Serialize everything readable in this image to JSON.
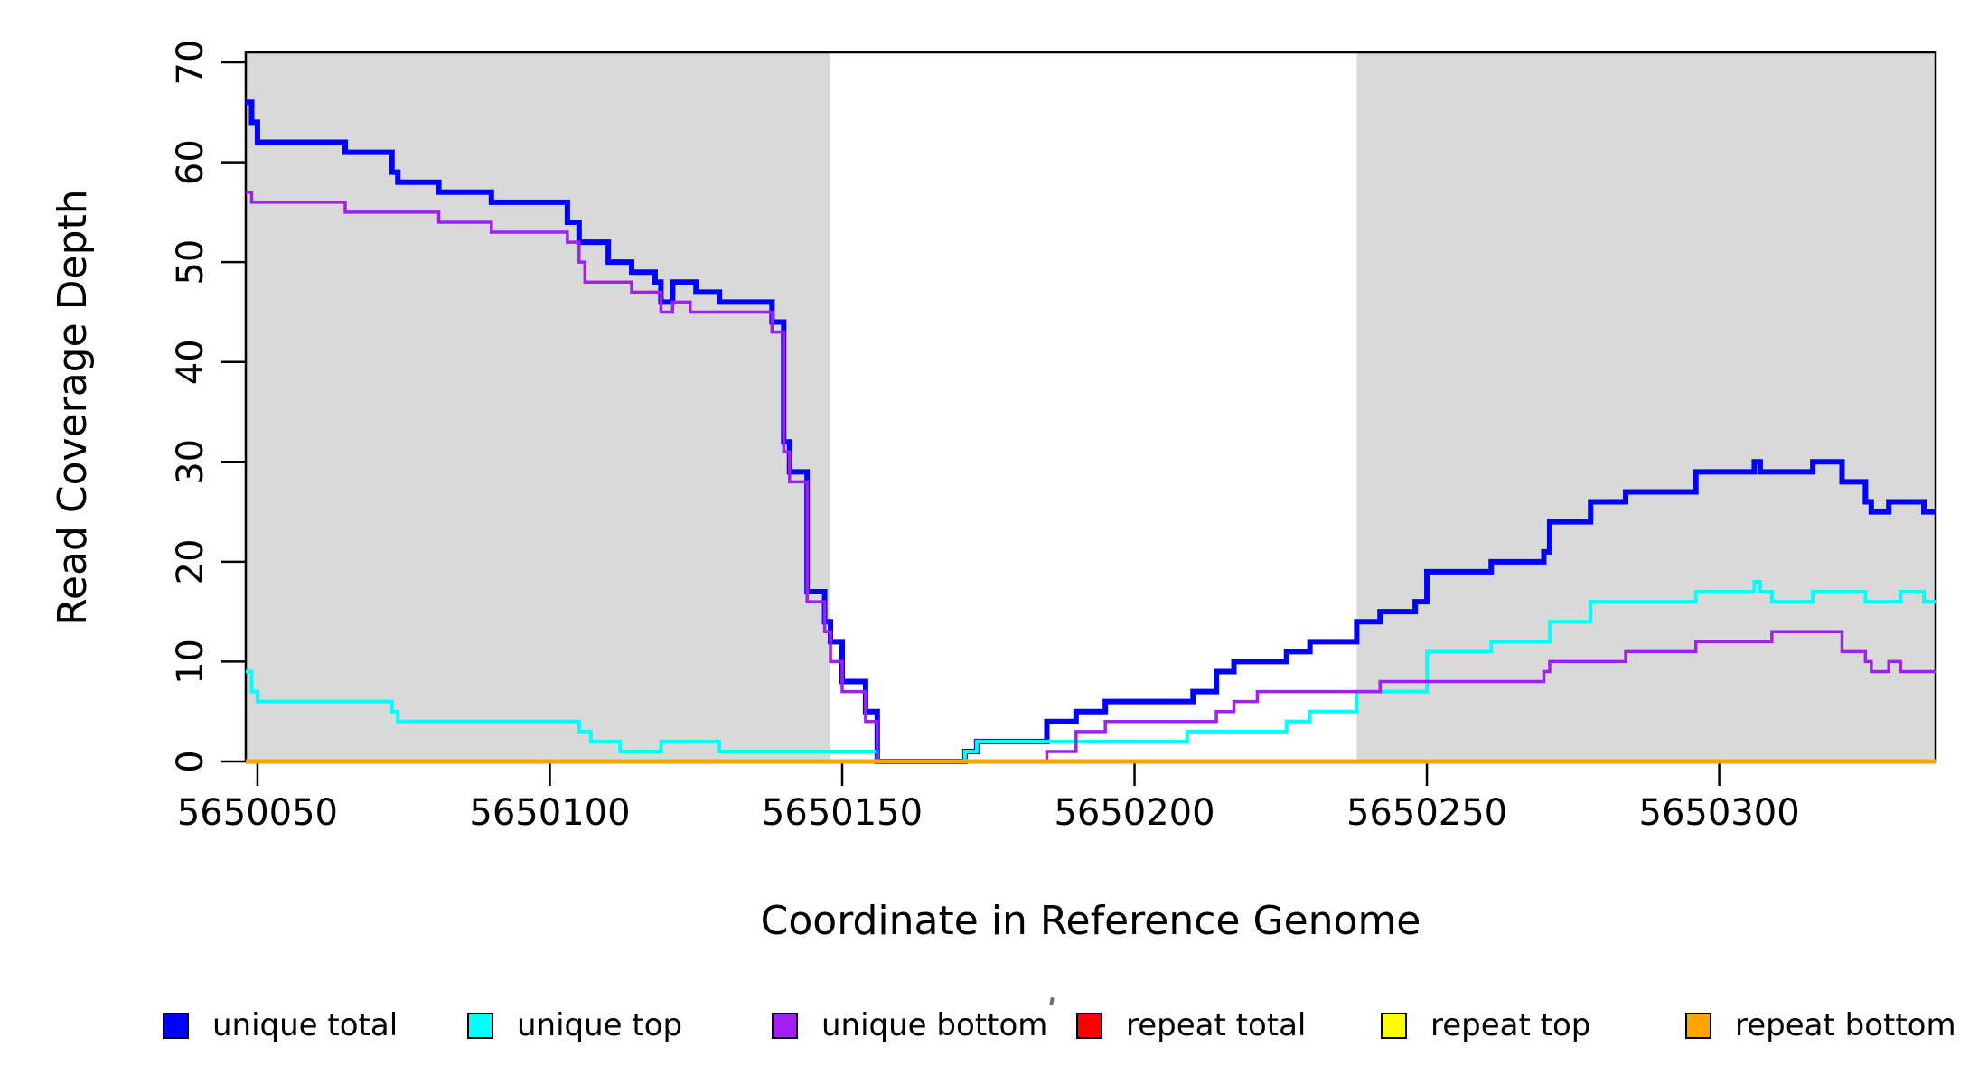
{
  "chart_data": {
    "type": "line",
    "subtype": "step",
    "title": "",
    "xlabel": "Coordinate in Reference Genome",
    "ylabel": "Read Coverage Depth",
    "xlim": [
      5650048,
      5650337
    ],
    "ylim": [
      0,
      71
    ],
    "x_ticks": [
      "5650050",
      "5650100",
      "5650150",
      "5650200",
      "5650250",
      "5650300"
    ],
    "y_ticks": [
      "0",
      "10",
      "20",
      "30",
      "40",
      "50",
      "60",
      "70"
    ],
    "grid": false,
    "legend_position": "bottom",
    "plot_background": "#FFFFFF",
    "band_color": "#D9D9D9",
    "box_color": "#000000",
    "shaded_regions": [
      {
        "x0": 5650048,
        "x1": 5650148
      },
      {
        "x0": 5650238,
        "x1": 5650337
      }
    ],
    "series": [
      {
        "name": "unique total",
        "color": "#0000FF",
        "width": 6,
        "steps": [
          [
            5650048,
            66
          ],
          [
            5650049,
            64
          ],
          [
            5650050,
            62
          ],
          [
            5650065,
            61
          ],
          [
            5650073,
            59
          ],
          [
            5650074,
            58
          ],
          [
            5650081,
            57
          ],
          [
            5650090,
            56
          ],
          [
            5650103,
            54
          ],
          [
            5650105,
            52
          ],
          [
            5650110,
            50
          ],
          [
            5650114,
            49
          ],
          [
            5650118,
            48
          ],
          [
            5650119,
            46
          ],
          [
            5650121,
            48
          ],
          [
            5650125,
            47
          ],
          [
            5650129,
            46
          ],
          [
            5650138,
            44
          ],
          [
            5650140,
            32
          ],
          [
            5650141,
            29
          ],
          [
            5650144,
            17
          ],
          [
            5650147,
            14
          ],
          [
            5650148,
            12
          ],
          [
            5650150,
            8
          ],
          [
            5650154,
            5
          ],
          [
            5650156,
            0
          ],
          [
            5650171,
            1
          ],
          [
            5650173,
            2
          ],
          [
            5650185,
            4
          ],
          [
            5650190,
            5
          ],
          [
            5650195,
            6
          ],
          [
            5650210,
            7
          ],
          [
            5650214,
            9
          ],
          [
            5650217,
            10
          ],
          [
            5650226,
            11
          ],
          [
            5650230,
            12
          ],
          [
            5650238,
            14
          ],
          [
            5650242,
            15
          ],
          [
            5650248,
            16
          ],
          [
            5650250,
            19
          ],
          [
            5650261,
            20
          ],
          [
            5650270,
            21
          ],
          [
            5650271,
            24
          ],
          [
            5650278,
            26
          ],
          [
            5650284,
            27
          ],
          [
            5650296,
            29
          ],
          [
            5650306,
            30
          ],
          [
            5650307,
            29
          ],
          [
            5650316,
            30
          ],
          [
            5650321,
            28
          ],
          [
            5650325,
            26
          ],
          [
            5650326,
            25
          ],
          [
            5650329,
            26
          ],
          [
            5650335,
            25
          ],
          [
            5650337,
            25
          ]
        ]
      },
      {
        "name": "unique top",
        "color": "#00FFFF",
        "width": 4,
        "steps": [
          [
            5650048,
            9
          ],
          [
            5650049,
            7
          ],
          [
            5650050,
            6
          ],
          [
            5650073,
            5
          ],
          [
            5650074,
            4
          ],
          [
            5650105,
            3
          ],
          [
            5650107,
            2
          ],
          [
            5650112,
            1
          ],
          [
            5650119,
            2
          ],
          [
            5650129,
            1
          ],
          [
            5650156,
            0
          ],
          [
            5650171,
            1
          ],
          [
            5650173,
            2
          ],
          [
            5650209,
            3
          ],
          [
            5650226,
            4
          ],
          [
            5650230,
            5
          ],
          [
            5650238,
            7
          ],
          [
            5650250,
            11
          ],
          [
            5650261,
            12
          ],
          [
            5650271,
            14
          ],
          [
            5650278,
            16
          ],
          [
            5650296,
            17
          ],
          [
            5650306,
            18
          ],
          [
            5650307,
            17
          ],
          [
            5650309,
            16
          ],
          [
            5650316,
            17
          ],
          [
            5650325,
            16
          ],
          [
            5650331,
            17
          ],
          [
            5650335,
            16
          ],
          [
            5650337,
            16
          ]
        ]
      },
      {
        "name": "unique bottom",
        "color": "#A020F0",
        "width": 3.5,
        "steps": [
          [
            5650048,
            57
          ],
          [
            5650049,
            56
          ],
          [
            5650065,
            55
          ],
          [
            5650081,
            54
          ],
          [
            5650090,
            53
          ],
          [
            5650103,
            52
          ],
          [
            5650105,
            50
          ],
          [
            5650106,
            48
          ],
          [
            5650114,
            47
          ],
          [
            5650119,
            45
          ],
          [
            5650121,
            46
          ],
          [
            5650124,
            45
          ],
          [
            5650138,
            43
          ],
          [
            5650140,
            31
          ],
          [
            5650141,
            28
          ],
          [
            5650144,
            16
          ],
          [
            5650147,
            13
          ],
          [
            5650148,
            10
          ],
          [
            5650150,
            7
          ],
          [
            5650154,
            4
          ],
          [
            5650156,
            0
          ],
          [
            5650185,
            1
          ],
          [
            5650190,
            3
          ],
          [
            5650195,
            4
          ],
          [
            5650214,
            5
          ],
          [
            5650217,
            6
          ],
          [
            5650221,
            7
          ],
          [
            5650242,
            8
          ],
          [
            5650270,
            9
          ],
          [
            5650271,
            10
          ],
          [
            5650284,
            11
          ],
          [
            5650296,
            12
          ],
          [
            5650309,
            13
          ],
          [
            5650321,
            11
          ],
          [
            5650325,
            10
          ],
          [
            5650326,
            9
          ],
          [
            5650329,
            10
          ],
          [
            5650331,
            9
          ],
          [
            5650337,
            9
          ]
        ]
      },
      {
        "name": "repeat total",
        "color": "#FF0000",
        "width": 4,
        "steps": [
          [
            5650048,
            0
          ],
          [
            5650337,
            0
          ]
        ]
      },
      {
        "name": "repeat top",
        "color": "#FFFF00",
        "width": 4,
        "steps": [
          [
            5650048,
            0
          ],
          [
            5650337,
            0
          ]
        ]
      },
      {
        "name": "repeat bottom",
        "color": "#FFA500",
        "width": 5,
        "steps": [
          [
            5650048,
            0
          ],
          [
            5650337,
            0
          ]
        ]
      }
    ]
  },
  "legend": {
    "marker_border_color": "#000000",
    "item_x_positions": [
      180,
      517,
      854,
      1191,
      1528,
      1865
    ]
  }
}
